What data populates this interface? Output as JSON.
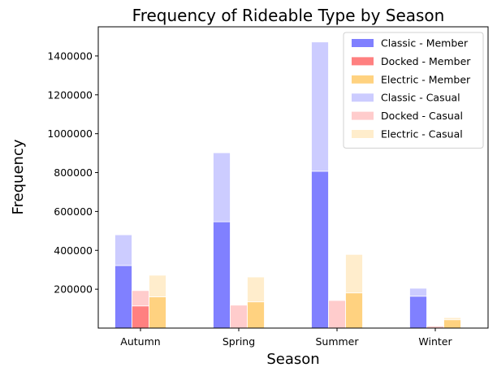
{
  "chart_data": {
    "type": "bar",
    "title": "Frequency of Rideable Type by Season",
    "xlabel": "Season",
    "ylabel": "Frequency",
    "categories": [
      "Autumn",
      "Spring",
      "Summer",
      "Winter"
    ],
    "ylim": [
      0,
      1550000
    ],
    "yticks": [
      200000,
      400000,
      600000,
      800000,
      1000000,
      1200000,
      1400000
    ],
    "ytick_labels": [
      "200000",
      "400000",
      "600000",
      "800000",
      "1000000",
      "1200000",
      "1400000"
    ],
    "grid": false,
    "legend_position": "top-right",
    "series": [
      {
        "name": "Classic - Member",
        "color": "#8080ff",
        "stack": "classic",
        "values": [
          322000,
          547000,
          807000,
          164000
        ]
      },
      {
        "name": "Docked - Member",
        "color": "#ff8080",
        "stack": "docked",
        "values": [
          114000,
          0,
          0,
          0
        ]
      },
      {
        "name": "Electric - Member",
        "color": "#ffd280",
        "stack": "electric",
        "values": [
          161000,
          135000,
          181000,
          43000
        ]
      },
      {
        "name": "Classic - Casual",
        "color": "#ccccff",
        "stack": "classic",
        "values": [
          158000,
          355000,
          665000,
          41000
        ]
      },
      {
        "name": "Docked - Casual",
        "color": "#ffcccc",
        "stack": "docked",
        "values": [
          79000,
          118000,
          142000,
          10000
        ]
      },
      {
        "name": "Electric - Casual",
        "color": "#ffedcc",
        "stack": "electric",
        "values": [
          111000,
          128000,
          198000,
          11000
        ]
      }
    ]
  }
}
